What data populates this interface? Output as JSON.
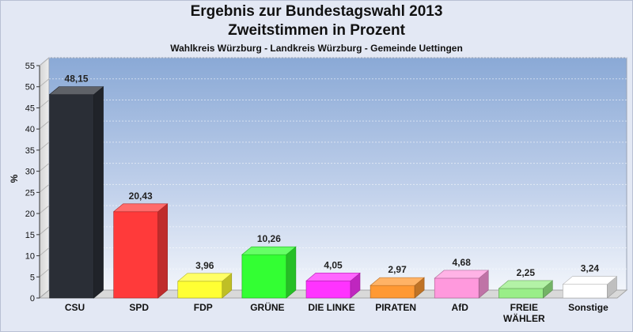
{
  "chart_data": {
    "type": "bar",
    "title": "Ergebnis zur Bundestagswahl 2013",
    "title2": "Zweitstimmen in Prozent",
    "subtitle": "Wahlkreis Würzburg - Landkreis Würzburg - Gemeinde Uettingen",
    "ylabel": "%",
    "xlabel": "",
    "ylim": [
      0,
      55
    ],
    "yticks": [
      "0",
      "5",
      "10",
      "15",
      "20",
      "25",
      "30",
      "35",
      "40",
      "45",
      "50",
      "55"
    ],
    "grid": true,
    "categories": [
      "CSU",
      "SPD",
      "FDP",
      "GRÜNE",
      "DIE LINKE",
      "PIRATEN",
      "AfD",
      "FREIE WÄHLER",
      "Sonstige"
    ],
    "values": [
      48.15,
      20.43,
      3.96,
      10.26,
      4.05,
      2.97,
      4.68,
      2.25,
      3.24
    ],
    "value_labels": [
      "48,15",
      "20,43",
      "3,96",
      "10,26",
      "4,05",
      "2,97",
      "4,68",
      "2,25",
      "3,24"
    ],
    "colors": [
      "#2a2e36",
      "#ff3a3a",
      "#ffff33",
      "#33ff33",
      "#ff33ff",
      "#ff9933",
      "#ff99dd",
      "#99ee88",
      "#ffffff"
    ]
  }
}
